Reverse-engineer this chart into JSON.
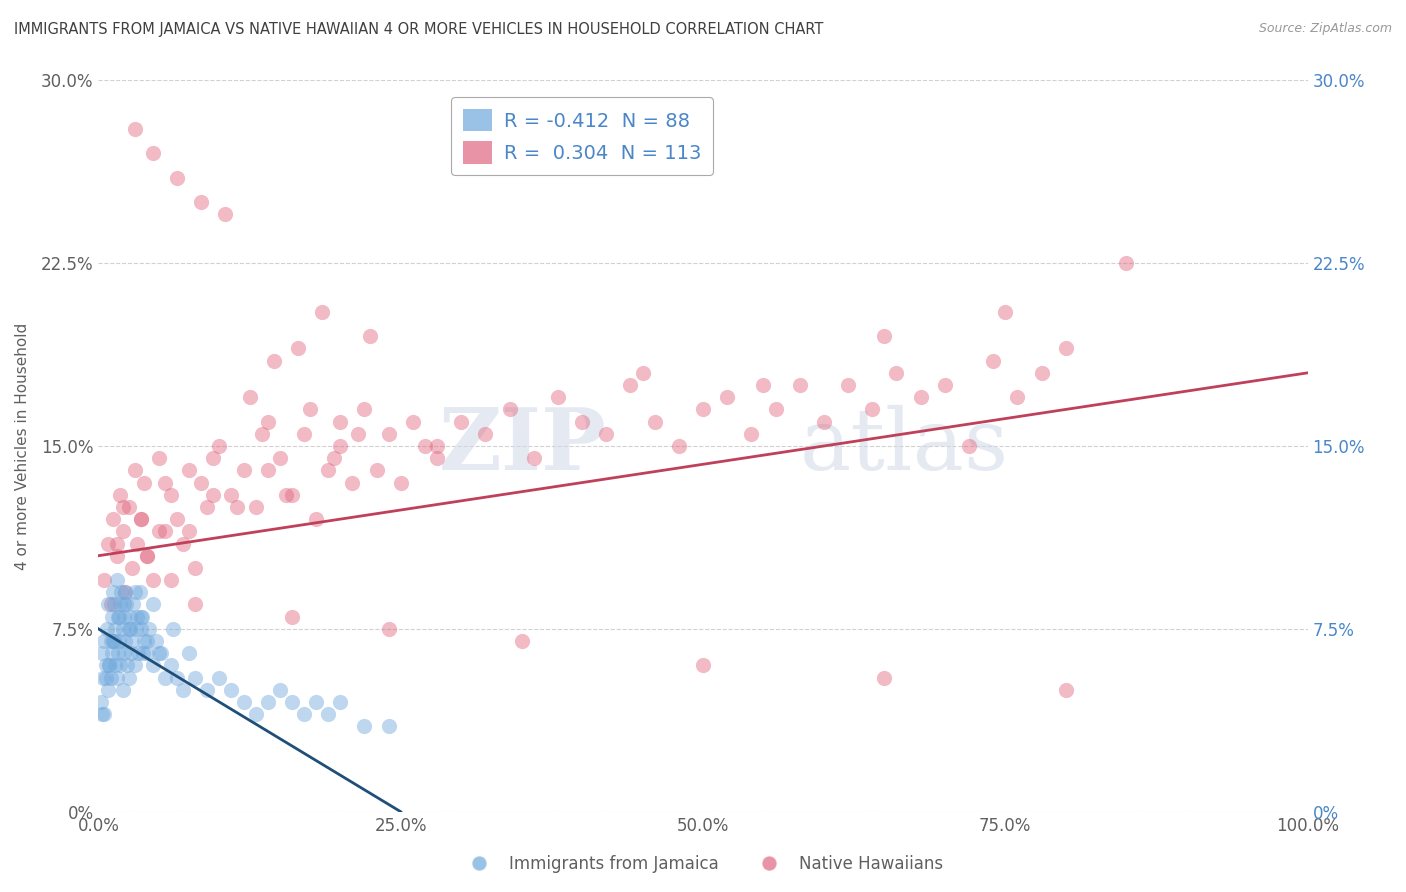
{
  "title": "IMMIGRANTS FROM JAMAICA VS NATIVE HAWAIIAN 4 OR MORE VEHICLES IN HOUSEHOLD CORRELATION CHART",
  "source": "Source: ZipAtlas.com",
  "ylabel": "4 or more Vehicles in Household",
  "xlim": [
    0,
    100
  ],
  "ylim": [
    0,
    30
  ],
  "yticks": [
    0,
    7.5,
    15.0,
    22.5,
    30.0
  ],
  "xticks": [
    0,
    25,
    50,
    75,
    100
  ],
  "xtick_labels": [
    "0.0%",
    "25.0%",
    "50.0%",
    "75.0%",
    "100.0%"
  ],
  "ytick_labels": [
    "0%",
    "7.5%",
    "15.0%",
    "22.5%",
    "30.0%"
  ],
  "blue_r": -0.412,
  "blue_n": 88,
  "pink_r": 0.304,
  "pink_n": 113,
  "blue_color": "#6fa8dc",
  "pink_color": "#e06680",
  "blue_line_color": "#1f4e79",
  "pink_line_color": "#c0405a",
  "background_color": "#ffffff",
  "grid_color": "#cccccc",
  "title_color": "#404040",
  "axis_color": "#606060",
  "right_axis_color": "#4a86c8",
  "legend_label_blue": "Immigrants from Jamaica",
  "legend_label_pink": "Native Hawaiians",
  "watermark_zip": "ZIP",
  "watermark_atlas": "atlas",
  "blue_scatter_x": [
    0.2,
    0.3,
    0.4,
    0.5,
    0.5,
    0.6,
    0.7,
    0.8,
    0.8,
    0.9,
    1.0,
    1.0,
    1.1,
    1.1,
    1.2,
    1.2,
    1.3,
    1.4,
    1.4,
    1.5,
    1.5,
    1.6,
    1.6,
    1.7,
    1.8,
    1.8,
    1.9,
    2.0,
    2.0,
    2.1,
    2.1,
    2.2,
    2.2,
    2.3,
    2.4,
    2.5,
    2.5,
    2.6,
    2.7,
    2.8,
    2.9,
    3.0,
    3.1,
    3.2,
    3.3,
    3.4,
    3.5,
    3.6,
    3.7,
    3.8,
    4.0,
    4.2,
    4.5,
    4.8,
    5.0,
    5.5,
    6.0,
    6.5,
    7.0,
    7.5,
    8.0,
    9.0,
    10.0,
    11.0,
    12.0,
    13.0,
    14.0,
    15.0,
    16.0,
    17.0,
    18.0,
    19.0,
    20.0,
    22.0,
    24.0,
    0.3,
    0.6,
    0.9,
    1.3,
    1.7,
    2.1,
    2.6,
    3.0,
    3.5,
    4.0,
    4.5,
    5.2,
    6.2
  ],
  "blue_scatter_y": [
    4.5,
    6.5,
    5.5,
    7.0,
    4.0,
    6.0,
    7.5,
    8.5,
    5.0,
    6.0,
    7.0,
    5.5,
    8.0,
    6.5,
    9.0,
    7.0,
    8.5,
    6.0,
    7.5,
    9.5,
    5.5,
    8.0,
    6.5,
    7.0,
    8.5,
    6.0,
    9.0,
    7.5,
    5.0,
    8.0,
    6.5,
    9.0,
    7.0,
    8.5,
    6.0,
    7.5,
    5.5,
    8.0,
    6.5,
    7.0,
    8.5,
    6.0,
    7.5,
    8.0,
    6.5,
    9.0,
    7.5,
    8.0,
    6.5,
    7.0,
    6.5,
    7.5,
    6.0,
    7.0,
    6.5,
    5.5,
    6.0,
    5.5,
    5.0,
    6.5,
    5.5,
    5.0,
    5.5,
    5.0,
    4.5,
    4.0,
    4.5,
    5.0,
    4.5,
    4.0,
    4.5,
    4.0,
    4.5,
    3.5,
    3.5,
    4.0,
    5.5,
    6.0,
    7.0,
    8.0,
    8.5,
    7.5,
    9.0,
    8.0,
    7.0,
    8.5,
    6.5,
    7.5
  ],
  "pink_scatter_x": [
    0.5,
    0.8,
    1.0,
    1.2,
    1.5,
    1.8,
    2.0,
    2.2,
    2.5,
    2.8,
    3.0,
    3.2,
    3.5,
    3.8,
    4.0,
    4.5,
    5.0,
    5.5,
    6.0,
    6.5,
    7.0,
    7.5,
    8.0,
    8.5,
    9.0,
    10.0,
    11.0,
    12.0,
    13.0,
    14.0,
    15.0,
    16.0,
    17.0,
    18.0,
    19.0,
    20.0,
    21.0,
    22.0,
    23.0,
    24.0,
    25.0,
    26.0,
    27.0,
    28.0,
    30.0,
    32.0,
    34.0,
    36.0,
    38.0,
    40.0,
    42.0,
    44.0,
    46.0,
    48.0,
    50.0,
    52.0,
    54.0,
    56.0,
    58.0,
    60.0,
    62.0,
    64.0,
    66.0,
    68.0,
    70.0,
    72.0,
    74.0,
    76.0,
    78.0,
    80.0,
    3.5,
    5.5,
    7.5,
    9.5,
    11.5,
    13.5,
    15.5,
    17.5,
    19.5,
    21.5,
    3.0,
    4.5,
    6.5,
    8.5,
    10.5,
    12.5,
    14.5,
    16.5,
    18.5,
    22.5,
    45.0,
    55.0,
    65.0,
    75.0,
    85.0,
    1.5,
    4.0,
    6.0,
    8.0,
    16.0,
    24.0,
    35.0,
    50.0,
    65.0,
    80.0,
    2.0,
    5.0,
    9.5,
    14.0,
    20.0,
    28.0
  ],
  "pink_scatter_y": [
    9.5,
    11.0,
    8.5,
    12.0,
    10.5,
    13.0,
    11.5,
    9.0,
    12.5,
    10.0,
    14.0,
    11.0,
    12.0,
    13.5,
    10.5,
    9.5,
    14.5,
    11.5,
    13.0,
    12.0,
    11.0,
    14.0,
    10.0,
    13.5,
    12.5,
    15.0,
    13.0,
    14.0,
    12.5,
    16.0,
    14.5,
    13.0,
    15.5,
    12.0,
    14.0,
    15.0,
    13.5,
    16.5,
    14.0,
    15.5,
    13.5,
    16.0,
    15.0,
    14.5,
    16.0,
    15.5,
    16.5,
    14.5,
    17.0,
    16.0,
    15.5,
    17.5,
    16.0,
    15.0,
    16.5,
    17.0,
    15.5,
    16.5,
    17.5,
    16.0,
    17.5,
    16.5,
    18.0,
    17.0,
    17.5,
    15.0,
    18.5,
    17.0,
    18.0,
    19.0,
    12.0,
    13.5,
    11.5,
    14.5,
    12.5,
    15.5,
    13.0,
    16.5,
    14.5,
    15.5,
    28.0,
    27.0,
    26.0,
    25.0,
    24.5,
    17.0,
    18.5,
    19.0,
    20.5,
    19.5,
    18.0,
    17.5,
    19.5,
    20.5,
    22.5,
    11.0,
    10.5,
    9.5,
    8.5,
    8.0,
    7.5,
    7.0,
    6.0,
    5.5,
    5.0,
    12.5,
    11.5,
    13.0,
    14.0,
    16.0,
    15.0
  ]
}
